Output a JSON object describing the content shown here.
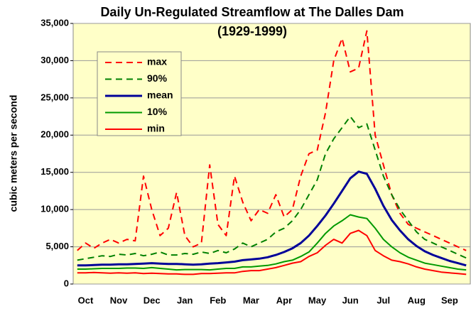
{
  "chart_data": {
    "type": "line",
    "title": "Daily Un-Regulated Streamflow at The Dalles Dam",
    "subtitle": "(1929-1999)",
    "y_label": "cubic meters per second",
    "categories": [
      null,
      "Oct",
      null,
      null,
      null,
      "Nov",
      null,
      null,
      null,
      "Dec",
      null,
      null,
      null,
      "Jan",
      null,
      null,
      null,
      "Feb",
      null,
      null,
      null,
      "Mar",
      null,
      null,
      null,
      "Apr",
      null,
      null,
      null,
      "May",
      null,
      null,
      null,
      "Jun",
      null,
      null,
      null,
      "Jul",
      null,
      null,
      null,
      "Aug",
      null,
      null,
      null,
      "Sep",
      null,
      null
    ],
    "ylim": [
      0,
      35000
    ],
    "yticks": [
      0,
      {
        "value": 5000,
        "label": "5,000"
      },
      {
        "value": 10000,
        "label": "10,000"
      },
      {
        "value": 15000,
        "label": "15,000"
      },
      {
        "value": 20000,
        "label": "20,000"
      },
      {
        "value": 25000,
        "label": "25,000"
      },
      {
        "value": 30000,
        "label": "30,000"
      },
      {
        "value": 35000,
        "label": "35,000"
      }
    ],
    "grid": true,
    "background": "#ffffc8",
    "series": [
      {
        "name": "max",
        "color": "#ff0000",
        "dashed": true,
        "width": 2,
        "values": [
          4500,
          5500,
          4800,
          5500,
          6000,
          5500,
          6000,
          5800,
          14500,
          10000,
          6500,
          7500,
          12300,
          6500,
          5000,
          5500,
          16000,
          8000,
          6500,
          14500,
          11000,
          8500,
          10000,
          9500,
          12000,
          9000,
          10000,
          14500,
          17500,
          18000,
          23000,
          30000,
          33000,
          28500,
          29000,
          34000,
          20000,
          16000,
          12000,
          9500,
          8000,
          7500,
          7000,
          6500,
          6000,
          5500,
          5000,
          4500
        ]
      },
      {
        "name": "90%",
        "color": "#008000",
        "dashed": true,
        "width": 2,
        "values": [
          3200,
          3400,
          3600,
          3800,
          3700,
          4000,
          3900,
          4100,
          3800,
          4000,
          4300,
          3900,
          3900,
          4100,
          4000,
          4300,
          4100,
          4500,
          4200,
          4700,
          5500,
          5000,
          5500,
          6000,
          7000,
          7500,
          8500,
          10000,
          12000,
          14000,
          17500,
          19500,
          21000,
          22500,
          21000,
          21500,
          18000,
          14500,
          12000,
          10000,
          8500,
          7000,
          6000,
          5500,
          5000,
          4500,
          4000,
          3500
        ]
      },
      {
        "name": "mean",
        "color": "#000099",
        "dashed": false,
        "width": 3,
        "values": [
          2500,
          2500,
          2550,
          2600,
          2600,
          2650,
          2650,
          2700,
          2750,
          2800,
          2750,
          2700,
          2700,
          2650,
          2600,
          2650,
          2750,
          2800,
          2900,
          3000,
          3200,
          3300,
          3400,
          3600,
          3900,
          4300,
          4800,
          5500,
          6500,
          7800,
          9200,
          10800,
          12500,
          14200,
          15100,
          14800,
          12800,
          10500,
          8600,
          7200,
          6000,
          5100,
          4400,
          3900,
          3500,
          3100,
          2800,
          2500
        ]
      },
      {
        "name": "10%",
        "color": "#009900",
        "dashed": false,
        "width": 2,
        "values": [
          2000,
          2000,
          2050,
          2100,
          2100,
          2100,
          2150,
          2150,
          2100,
          2200,
          2100,
          2000,
          1900,
          1950,
          1950,
          1950,
          1900,
          2000,
          2100,
          2100,
          2300,
          2300,
          2400,
          2500,
          2700,
          3000,
          3200,
          3700,
          4300,
          5500,
          6800,
          7800,
          8500,
          9300,
          9000,
          8800,
          7500,
          6000,
          5000,
          4200,
          3600,
          3200,
          2800,
          2600,
          2400,
          2200,
          2000,
          1900
        ]
      },
      {
        "name": "min",
        "color": "#ff0000",
        "dashed": false,
        "width": 2,
        "values": [
          1500,
          1500,
          1550,
          1500,
          1450,
          1500,
          1450,
          1500,
          1400,
          1450,
          1400,
          1350,
          1350,
          1300,
          1300,
          1400,
          1400,
          1450,
          1500,
          1500,
          1700,
          1800,
          1800,
          2000,
          2200,
          2500,
          2800,
          3000,
          3700,
          4200,
          5200,
          6000,
          5500,
          6800,
          7200,
          6500,
          4500,
          3800,
          3200,
          3000,
          2700,
          2300,
          2000,
          1800,
          1600,
          1500,
          1400,
          1300
        ]
      }
    ]
  }
}
